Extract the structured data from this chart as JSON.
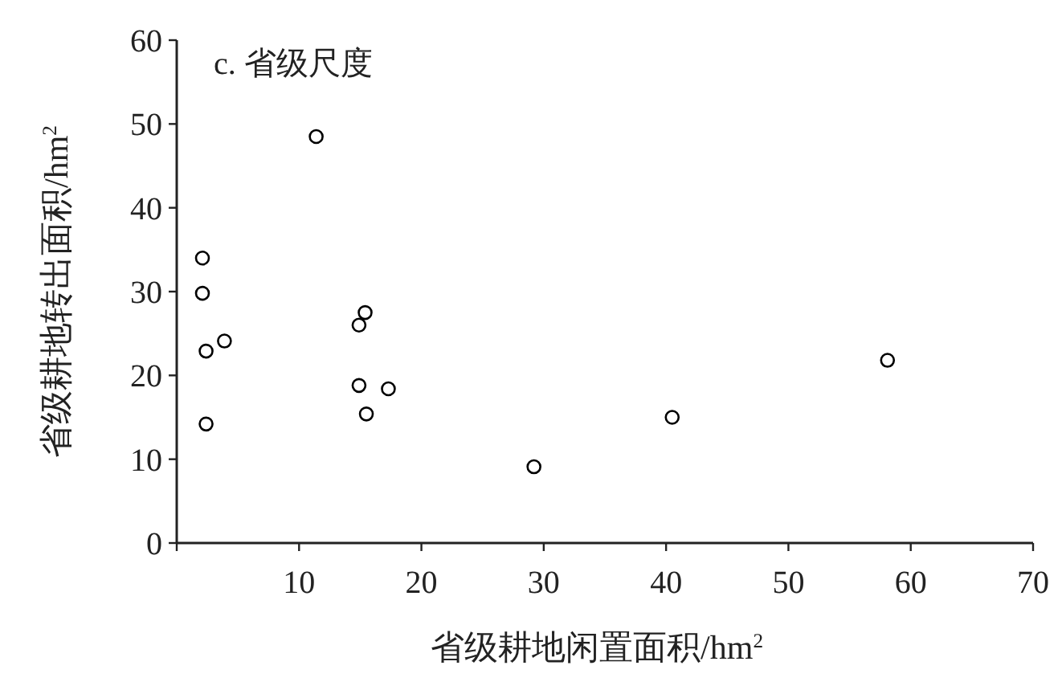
{
  "chart_data": {
    "type": "scatter",
    "title": "c. 省级尺度",
    "xlabel": "省级耕地闲置面积/hm$^{2}$",
    "ylabel": "省级耕地转出面积/hm$^{2}$",
    "x": [
      2.1,
      2.1,
      2.4,
      3.9,
      2.4,
      11.4,
      15.4,
      14.9,
      14.9,
      17.3,
      15.5,
      29.2,
      40.5,
      58.1
    ],
    "series": [
      {
        "color": "#000000",
        "values": [
          34.0,
          29.8,
          22.9,
          24.1,
          14.2,
          48.5,
          27.5,
          26.0,
          18.8,
          18.4,
          15.4,
          9.1,
          15.0,
          21.8
        ]
      }
    ],
    "xlim": [
      0,
      70
    ],
    "ylim": [
      0,
      60
    ],
    "xticks": [
      {
        "value": 0,
        "label": null
      },
      10,
      20,
      30,
      40,
      50,
      60,
      70
    ],
    "yticks": [
      0,
      10,
      20,
      30,
      40,
      50,
      60
    ],
    "marker": "circle",
    "grid": false
  }
}
